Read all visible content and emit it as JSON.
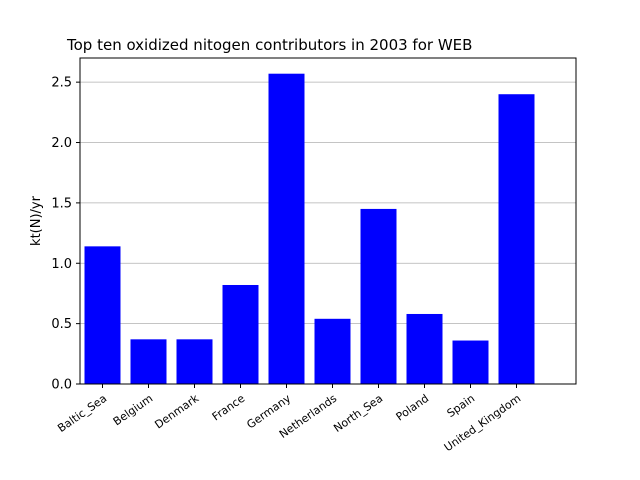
{
  "chart_data": {
    "type": "bar",
    "title": "Top ten oxidized nitogen contributors in 2003 for  WEB",
    "xlabel": "",
    "ylabel": "kt(N)/yr",
    "categories": [
      "Baltic_Sea",
      "Belgium",
      "Denmark",
      "France",
      "Germany",
      "Netherlands",
      "North_Sea",
      "Poland",
      "Spain",
      "United_Kingdom"
    ],
    "values": [
      1.14,
      0.37,
      0.37,
      0.82,
      2.57,
      0.54,
      1.45,
      0.58,
      0.36,
      2.4
    ],
    "ylim": [
      0,
      2.7
    ],
    "yticks": [
      "0.0",
      "0.5",
      "1.0",
      "1.5",
      "2.0",
      "2.5"
    ],
    "grid": "horizontal",
    "bar_color": "#0000ff"
  }
}
